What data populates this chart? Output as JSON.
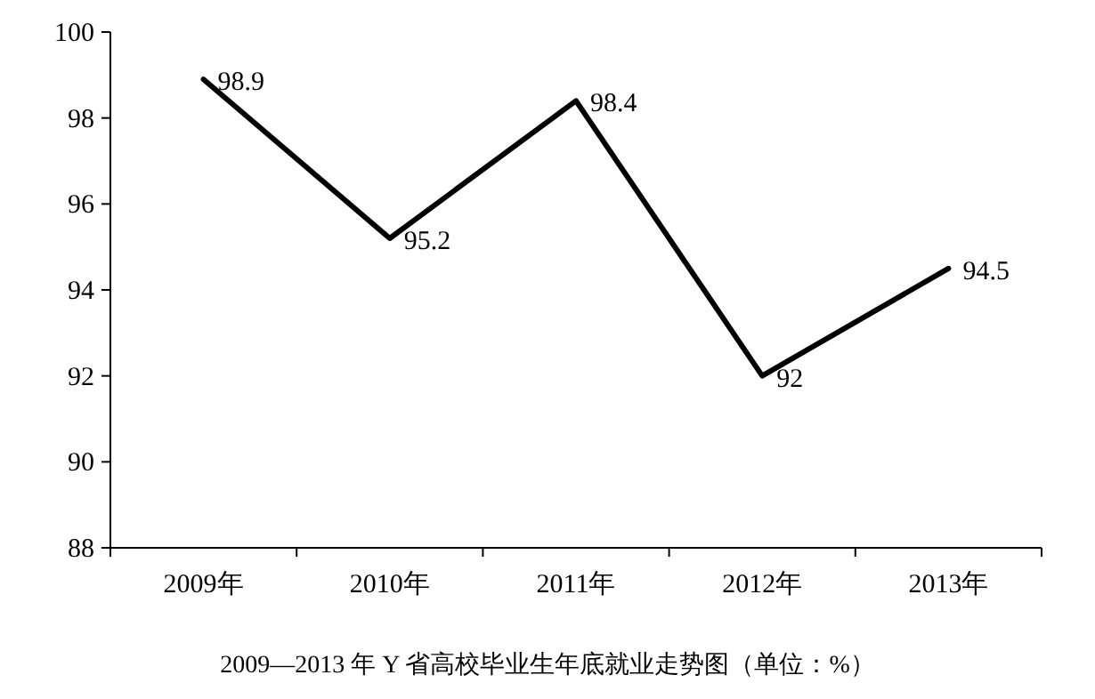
{
  "chart_data": {
    "type": "line",
    "title": "2009—2013 年 Y 省高校毕业生年底就业走势图（单位：%）",
    "categories": [
      "2009年",
      "2010年",
      "2011年",
      "2012年",
      "2013年"
    ],
    "series": [
      {
        "color": "#000000",
        "values": [
          98.9,
          95.2,
          98.4,
          92,
          94.5
        ]
      }
    ],
    "ylim": [
      88,
      100
    ],
    "yticks": [
      88,
      90,
      92,
      94,
      96,
      98,
      100
    ],
    "data_labels": true,
    "grid": false,
    "marker": "none",
    "line_style": "solid"
  }
}
